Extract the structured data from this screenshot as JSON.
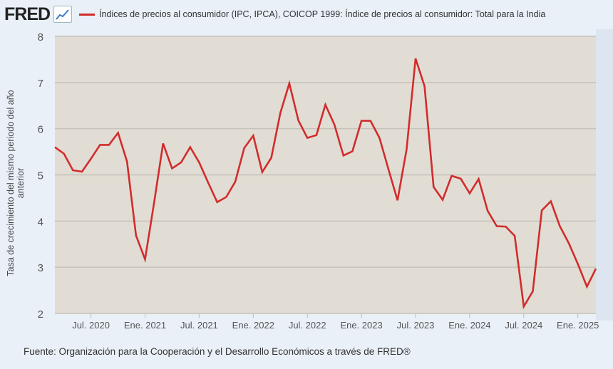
{
  "header": {
    "logo": "FRED",
    "logo_icon": "chart-line-icon"
  },
  "source": "Fuente: Organización para la Cooperación y el Desarrollo Económicos a través de FRED®",
  "chart_data": {
    "type": "line",
    "title": "Índices de precios al consumidor (IPC, IPCA), COICOP 1999: Índice de precios al consumidor: Total para la India",
    "xlabel": "",
    "ylabel": "Tasa de crecimiento del mismo periodo del año anterior",
    "ylim": [
      2,
      8
    ],
    "yticks": [
      2,
      3,
      4,
      5,
      6,
      7,
      8
    ],
    "xticks": [
      {
        "label": "Jul. 2020",
        "index": 4
      },
      {
        "label": "Ene. 2021",
        "index": 10
      },
      {
        "label": "Jul. 2021",
        "index": 16
      },
      {
        "label": "Ene. 2022",
        "index": 22
      },
      {
        "label": "Jul. 2022",
        "index": 28
      },
      {
        "label": "Ene. 2023",
        "index": 34
      },
      {
        "label": "Jul. 2023",
        "index": 40
      },
      {
        "label": "Ene. 2024",
        "index": 46
      },
      {
        "label": "Jul. 2024",
        "index": 52
      },
      {
        "label": "Ene. 2025",
        "index": 58
      }
    ],
    "x_start": "2020-03",
    "x_end": "2025-03",
    "frequency": "monthly",
    "grid": true,
    "legend": "top",
    "color": "#d22c2c",
    "series": [
      {
        "name": "Índices de precios al consumidor (IPC, IPCA), COICOP 1999: Índice de precios al consumidor: Total para la India",
        "values": [
          5.6,
          5.46,
          5.1,
          5.07,
          5.35,
          5.65,
          5.65,
          5.91,
          5.29,
          3.69,
          3.17,
          4.4,
          5.68,
          5.14,
          5.27,
          5.6,
          5.27,
          4.83,
          4.41,
          4.52,
          4.85,
          5.58,
          5.85,
          5.06,
          5.37,
          6.34,
          6.98,
          6.18,
          5.8,
          5.86,
          6.52,
          6.09,
          5.42,
          5.51,
          6.17,
          6.17,
          5.8,
          5.12,
          4.45,
          5.55,
          7.52,
          6.92,
          4.74,
          4.46,
          4.98,
          4.92,
          4.6,
          4.91,
          4.22,
          3.89,
          3.88,
          3.68,
          2.15,
          2.48,
          4.23,
          4.43,
          3.89,
          3.52,
          3.07,
          2.58,
          2.97
        ]
      }
    ]
  }
}
